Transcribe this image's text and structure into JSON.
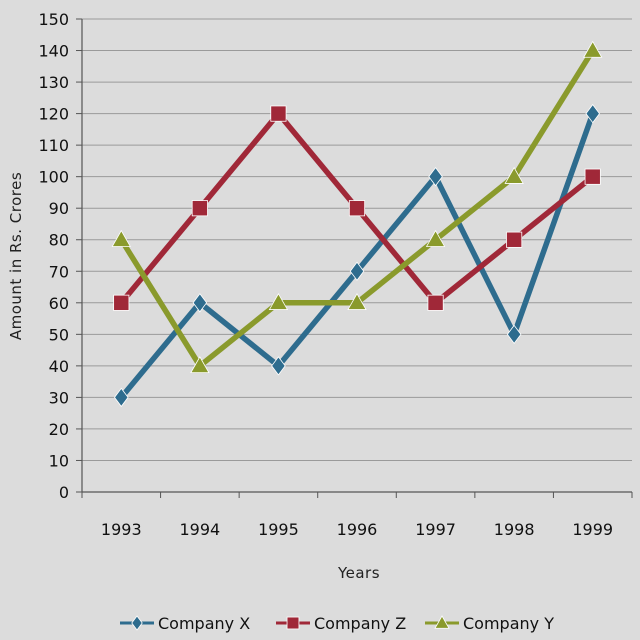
{
  "chart_data": {
    "type": "line",
    "xlabel": "Years",
    "ylabel": "Amount in Rs. Crores",
    "categories": [
      "1993",
      "1994",
      "1995",
      "1996",
      "1997",
      "1998",
      "1999"
    ],
    "ylim": [
      0,
      150
    ],
    "ytick_step": 10,
    "grid": true,
    "legend_position": "bottom",
    "series": [
      {
        "name": "Company X",
        "values": [
          30,
          60,
          40,
          70,
          100,
          50,
          120
        ],
        "color": "#2e6c8e",
        "marker": "diamond"
      },
      {
        "name": "Company Z",
        "values": [
          60,
          90,
          120,
          90,
          60,
          80,
          100
        ],
        "color": "#a02838",
        "marker": "square"
      },
      {
        "name": "Company Y",
        "values": [
          80,
          40,
          60,
          60,
          80,
          100,
          140
        ],
        "color": "#8a9a2c",
        "marker": "triangle"
      }
    ]
  }
}
